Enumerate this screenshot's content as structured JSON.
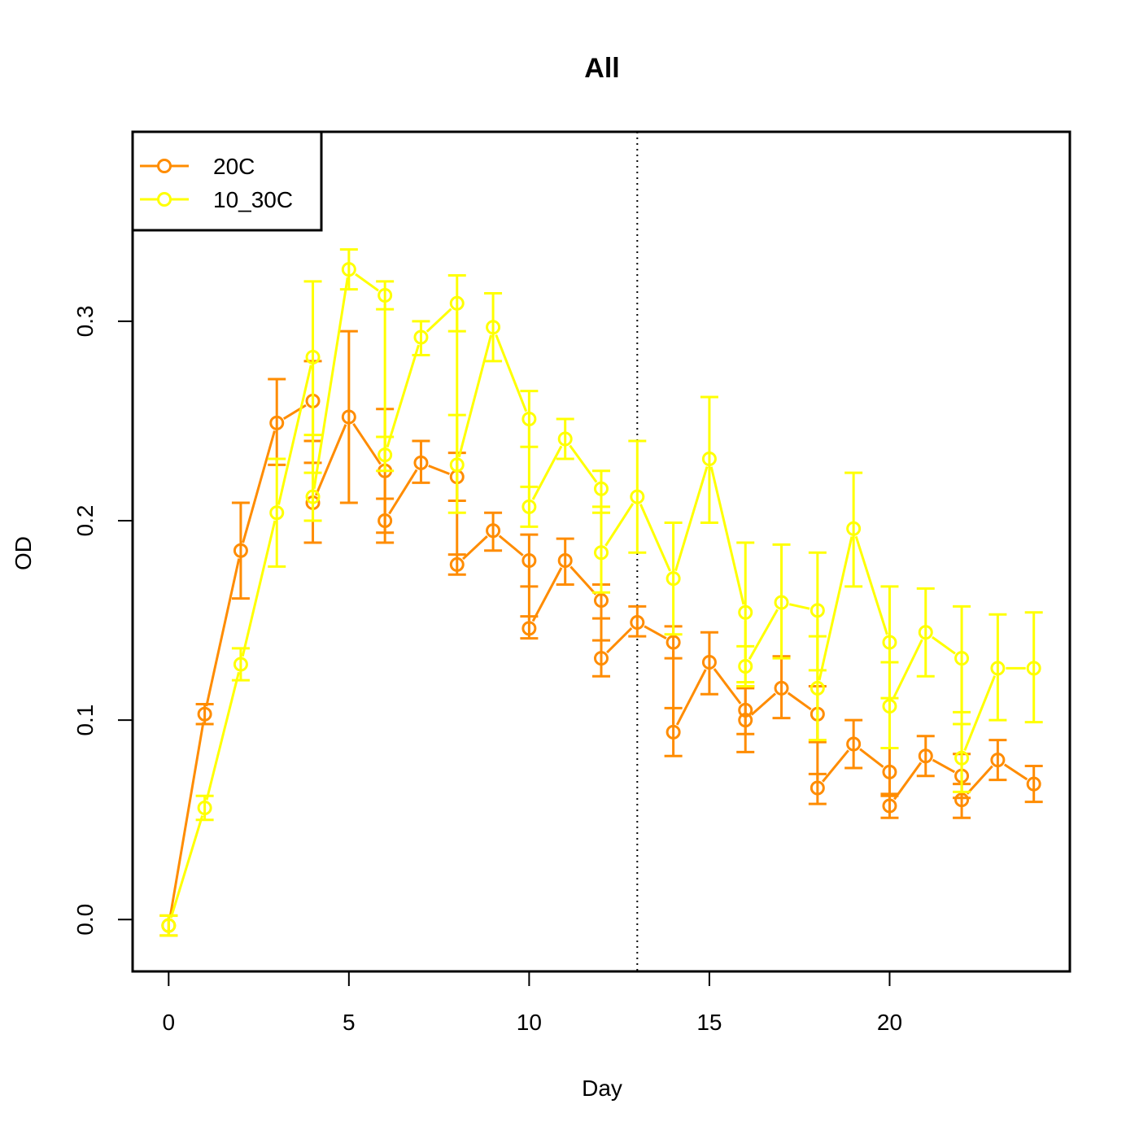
{
  "colors": {
    "series_20C": "#FF8C00",
    "series_10_30C": "#FFFF00",
    "background": "#FFFFFF",
    "axes": "#000000"
  },
  "chart_data": {
    "type": "line",
    "title": "All",
    "xlabel": "Day",
    "ylabel": "OD",
    "xlim": [
      -1,
      25
    ],
    "ylim": [
      -0.026,
      0.395
    ],
    "x_ticks": [
      0,
      5,
      10,
      15,
      20
    ],
    "x_tick_labels": [
      "0",
      "5",
      "10",
      "15",
      "20"
    ],
    "y_ticks": [
      0.0,
      0.1,
      0.2,
      0.3
    ],
    "y_tick_labels": [
      "0.0",
      "0.1",
      "0.2",
      "0.3"
    ],
    "grid": false,
    "legend_position": "top-left",
    "reference_line": {
      "x": 13,
      "style": "dotted"
    },
    "series": [
      {
        "name": "20C",
        "color": "#FF8C00",
        "marker": "open-circle",
        "points": [
          {
            "x": 0,
            "y": -0.003,
            "lo": -0.008,
            "hi": 0.002
          },
          {
            "x": 1,
            "y": 0.103,
            "lo": 0.098,
            "hi": 0.108
          },
          {
            "x": 2,
            "y": 0.185,
            "lo": 0.161,
            "hi": 0.209
          },
          {
            "x": 3,
            "y": 0.249,
            "lo": 0.228,
            "hi": 0.271
          },
          {
            "x": 4,
            "y": 0.26,
            "lo": 0.24,
            "hi": 0.28
          },
          {
            "x": 4,
            "y": 0.209,
            "lo": 0.189,
            "hi": 0.229
          },
          {
            "x": 5,
            "y": 0.252,
            "lo": 0.209,
            "hi": 0.295
          },
          {
            "x": 6,
            "y": 0.225,
            "lo": 0.194,
            "hi": 0.256
          },
          {
            "x": 6,
            "y": 0.2,
            "lo": 0.189,
            "hi": 0.211
          },
          {
            "x": 7,
            "y": 0.229,
            "lo": 0.219,
            "hi": 0.24
          },
          {
            "x": 8,
            "y": 0.222,
            "lo": 0.21,
            "hi": 0.234
          },
          {
            "x": 8,
            "y": 0.178,
            "lo": 0.173,
            "hi": 0.183
          },
          {
            "x": 9,
            "y": 0.195,
            "lo": 0.185,
            "hi": 0.204
          },
          {
            "x": 10,
            "y": 0.18,
            "lo": 0.167,
            "hi": 0.193
          },
          {
            "x": 10,
            "y": 0.146,
            "lo": 0.141,
            "hi": 0.152
          },
          {
            "x": 11,
            "y": 0.18,
            "lo": 0.168,
            "hi": 0.191
          },
          {
            "x": 12,
            "y": 0.16,
            "lo": 0.151,
            "hi": 0.168
          },
          {
            "x": 12,
            "y": 0.131,
            "lo": 0.122,
            "hi": 0.14
          },
          {
            "x": 13,
            "y": 0.149,
            "lo": 0.142,
            "hi": 0.157
          },
          {
            "x": 14,
            "y": 0.139,
            "lo": 0.131,
            "hi": 0.147
          },
          {
            "x": 14,
            "y": 0.094,
            "lo": 0.082,
            "hi": 0.106
          },
          {
            "x": 15,
            "y": 0.129,
            "lo": 0.113,
            "hi": 0.144
          },
          {
            "x": 16,
            "y": 0.105,
            "lo": 0.093,
            "hi": 0.117
          },
          {
            "x": 16,
            "y": 0.1,
            "lo": 0.084,
            "hi": 0.116
          },
          {
            "x": 17,
            "y": 0.116,
            "lo": 0.101,
            "hi": 0.132
          },
          {
            "x": 18,
            "y": 0.103,
            "lo": 0.089,
            "hi": 0.117
          },
          {
            "x": 18,
            "y": 0.066,
            "lo": 0.058,
            "hi": 0.073
          },
          {
            "x": 19,
            "y": 0.088,
            "lo": 0.076,
            "hi": 0.1
          },
          {
            "x": 20,
            "y": 0.074,
            "lo": 0.062,
            "hi": 0.086
          },
          {
            "x": 20,
            "y": 0.057,
            "lo": 0.051,
            "hi": 0.063
          },
          {
            "x": 21,
            "y": 0.082,
            "lo": 0.072,
            "hi": 0.092
          },
          {
            "x": 22,
            "y": 0.072,
            "lo": 0.061,
            "hi": 0.083
          },
          {
            "x": 22,
            "y": 0.06,
            "lo": 0.051,
            "hi": 0.068
          },
          {
            "x": 23,
            "y": 0.08,
            "lo": 0.07,
            "hi": 0.09
          },
          {
            "x": 24,
            "y": 0.068,
            "lo": 0.059,
            "hi": 0.077
          }
        ]
      },
      {
        "name": "10_30C",
        "color": "#FFFF00",
        "marker": "open-circle",
        "points": [
          {
            "x": 0,
            "y": -0.003,
            "lo": -0.008,
            "hi": 0.002
          },
          {
            "x": 1,
            "y": 0.056,
            "lo": 0.05,
            "hi": 0.062
          },
          {
            "x": 2,
            "y": 0.128,
            "lo": 0.12,
            "hi": 0.136
          },
          {
            "x": 3,
            "y": 0.204,
            "lo": 0.177,
            "hi": 0.231
          },
          {
            "x": 4,
            "y": 0.282,
            "lo": 0.243,
            "hi": 0.32
          },
          {
            "x": 4,
            "y": 0.212,
            "lo": 0.2,
            "hi": 0.224
          },
          {
            "x": 5,
            "y": 0.326,
            "lo": 0.316,
            "hi": 0.336
          },
          {
            "x": 6,
            "y": 0.313,
            "lo": 0.306,
            "hi": 0.32
          },
          {
            "x": 6,
            "y": 0.233,
            "lo": 0.225,
            "hi": 0.242
          },
          {
            "x": 7,
            "y": 0.292,
            "lo": 0.283,
            "hi": 0.3
          },
          {
            "x": 8,
            "y": 0.309,
            "lo": 0.295,
            "hi": 0.323
          },
          {
            "x": 8,
            "y": 0.228,
            "lo": 0.204,
            "hi": 0.253
          },
          {
            "x": 9,
            "y": 0.297,
            "lo": 0.28,
            "hi": 0.314
          },
          {
            "x": 10,
            "y": 0.251,
            "lo": 0.237,
            "hi": 0.265
          },
          {
            "x": 10,
            "y": 0.207,
            "lo": 0.197,
            "hi": 0.217
          },
          {
            "x": 11,
            "y": 0.241,
            "lo": 0.231,
            "hi": 0.251
          },
          {
            "x": 12,
            "y": 0.216,
            "lo": 0.207,
            "hi": 0.225
          },
          {
            "x": 12,
            "y": 0.184,
            "lo": 0.164,
            "hi": 0.204
          },
          {
            "x": 13,
            "y": 0.212,
            "lo": 0.184,
            "hi": 0.24
          },
          {
            "x": 14,
            "y": 0.171,
            "lo": 0.143,
            "hi": 0.199
          },
          {
            "x": 15,
            "y": 0.231,
            "lo": 0.199,
            "hi": 0.262
          },
          {
            "x": 16,
            "y": 0.154,
            "lo": 0.119,
            "hi": 0.189
          },
          {
            "x": 16,
            "y": 0.127,
            "lo": 0.117,
            "hi": 0.137
          },
          {
            "x": 17,
            "y": 0.159,
            "lo": 0.131,
            "hi": 0.188
          },
          {
            "x": 18,
            "y": 0.155,
            "lo": 0.125,
            "hi": 0.184
          },
          {
            "x": 18,
            "y": 0.116,
            "lo": 0.09,
            "hi": 0.142
          },
          {
            "x": 19,
            "y": 0.196,
            "lo": 0.167,
            "hi": 0.224
          },
          {
            "x": 20,
            "y": 0.139,
            "lo": 0.111,
            "hi": 0.167
          },
          {
            "x": 20,
            "y": 0.107,
            "lo": 0.086,
            "hi": 0.129
          },
          {
            "x": 21,
            "y": 0.144,
            "lo": 0.122,
            "hi": 0.166
          },
          {
            "x": 22,
            "y": 0.131,
            "lo": 0.104,
            "hi": 0.157
          },
          {
            "x": 22,
            "y": 0.081,
            "lo": 0.064,
            "hi": 0.098
          },
          {
            "x": 23,
            "y": 0.126,
            "lo": 0.1,
            "hi": 0.153
          },
          {
            "x": 24,
            "y": 0.126,
            "lo": 0.099,
            "hi": 0.154
          }
        ]
      }
    ]
  }
}
